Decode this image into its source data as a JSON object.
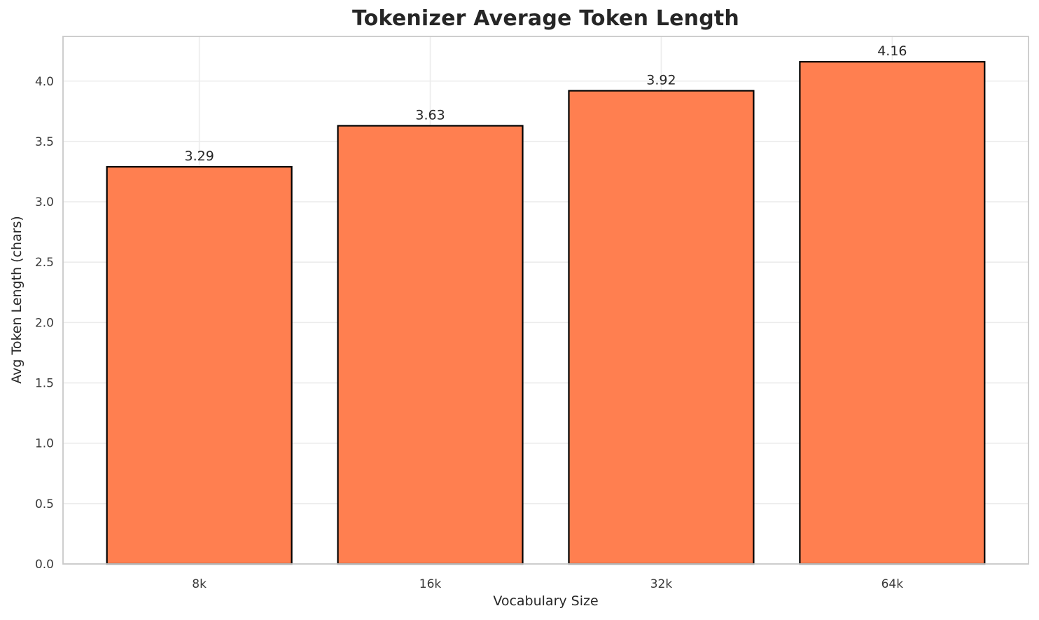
{
  "chart_data": {
    "type": "bar",
    "title": "Tokenizer Average Token Length",
    "xlabel": "Vocabulary Size",
    "ylabel": "Avg Token Length (chars)",
    "categories": [
      "8k",
      "16k",
      "32k",
      "64k"
    ],
    "values": [
      3.29,
      3.63,
      3.92,
      4.16
    ],
    "value_labels": [
      "3.29",
      "3.63",
      "3.92",
      "4.16"
    ],
    "ytick_values": [
      0.0,
      0.5,
      1.0,
      1.5,
      2.0,
      2.5,
      3.0,
      3.5,
      4.0
    ],
    "ytick_labels": [
      "0.0",
      "0.5",
      "1.0",
      "1.5",
      "2.0",
      "2.5",
      "3.0",
      "3.5",
      "4.0"
    ],
    "ylim": [
      0,
      4.37
    ],
    "xlim": [
      -0.59,
      3.59
    ],
    "bar_width_fraction": 0.8,
    "grid": true,
    "legend_position": "none",
    "colors": {
      "bar_fill": "#FF7F50",
      "bar_edge": "#000000",
      "grid_line": "#ECECEC",
      "spine": "#C9C9C9",
      "title_text": "#262626",
      "tick_text": "#3A3A3A",
      "background": "#FFFFFF"
    }
  }
}
